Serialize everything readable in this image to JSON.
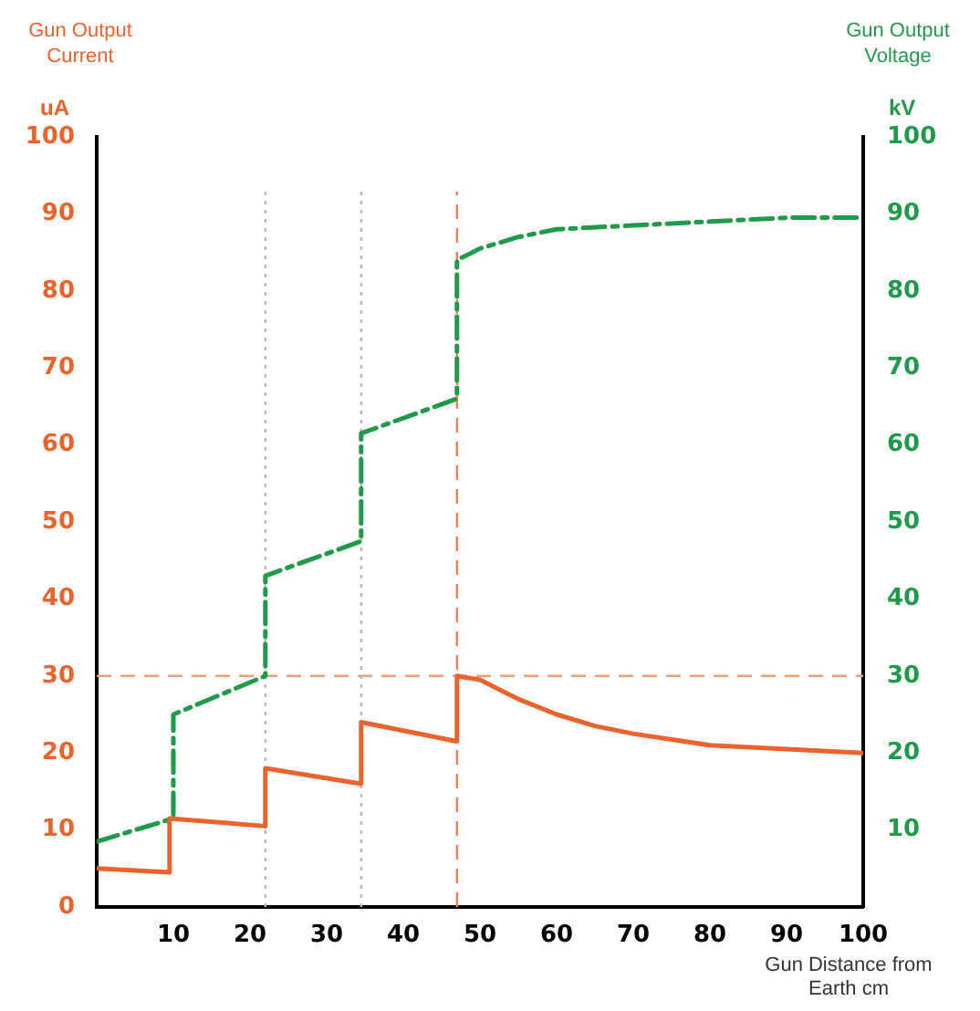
{
  "chart_data": {
    "type": "line",
    "xlabel": "Gun Distance from Earth cm",
    "ylabel": "Gun Output Current",
    "y2label": "Gun Output Voltage",
    "annotations": [
      "uA",
      "kV"
    ],
    "xlim": [
      0,
      100
    ],
    "xticks": [
      10,
      20,
      30,
      40,
      50,
      60,
      70,
      80,
      90,
      100
    ],
    "ylim": [
      0,
      100
    ],
    "yticks": [
      0,
      10,
      20,
      30,
      40,
      50,
      60,
      70,
      80,
      90,
      100
    ],
    "y2lim": [
      0,
      100
    ],
    "y2ticks": [
      10,
      20,
      30,
      40,
      50,
      60,
      70,
      80,
      90,
      100
    ],
    "grid": false,
    "legend": false,
    "marker": "none",
    "series": [
      {
        "color": "#e8642c",
        "line_style": "solid",
        "x": [
          0,
          9.5,
          9.5,
          22,
          22,
          34.5,
          34.5,
          47,
          47,
          50,
          55,
          60,
          65,
          70,
          80,
          90,
          100
        ],
        "values": [
          5,
          4.5,
          11.5,
          10.5,
          18,
          16,
          24,
          21.5,
          30,
          29.5,
          27,
          25,
          23.5,
          22.5,
          21,
          20.5,
          20
        ]
      },
      {
        "color": "#1f9a4a",
        "line_style": "dashed",
        "axis": "y2",
        "x": [
          0,
          10,
          10,
          22,
          22,
          34.5,
          34.5,
          47,
          47,
          50,
          55,
          60,
          70,
          80,
          90,
          100
        ],
        "values": [
          8.5,
          11.5,
          25,
          30,
          43,
          47.5,
          61.5,
          66,
          84,
          85.5,
          87,
          88,
          88.5,
          89,
          89.5,
          89.5
        ]
      }
    ],
    "ref_lines": [
      {
        "axis": "y",
        "value": 30,
        "color": "#f0a070",
        "line_style": "dashed"
      },
      {
        "axis": "x",
        "value": 47,
        "color": "#f08060",
        "line_style": "dashed"
      },
      {
        "axis": "x",
        "value": 22,
        "color": "#b8b8b8",
        "line_style": "dotted"
      },
      {
        "axis": "x",
        "value": 34.5,
        "color": "#b8b8b8",
        "line_style": "dotted"
      }
    ]
  }
}
